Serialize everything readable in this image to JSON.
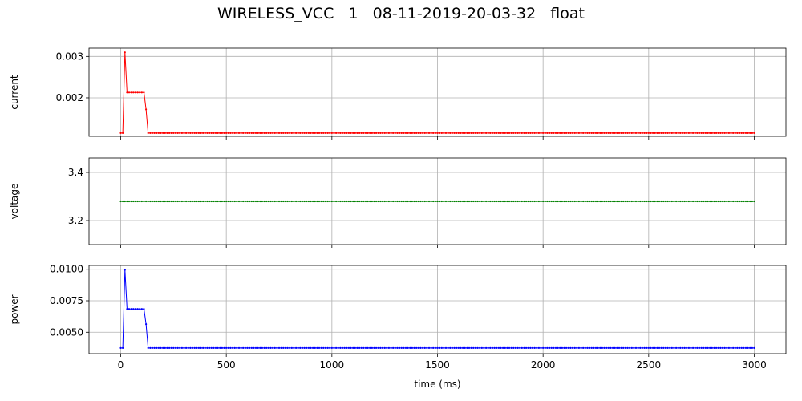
{
  "figure": {
    "title": "WIRELESS_VCC   1   08-11-2019-20-03-32   float"
  },
  "chart_data": [
    {
      "type": "line",
      "title": "",
      "xlabel": "",
      "ylabel": "current",
      "color": "#ff0000",
      "xlim": [
        -150,
        3150
      ],
      "ylim": [
        0.00107,
        0.0032
      ],
      "yticks": [
        0.002,
        0.003
      ],
      "ytick_labels": [
        "0.002",
        "0.003"
      ],
      "xticks": [
        0,
        500,
        1000,
        1500,
        2000,
        2500,
        3000
      ],
      "xtick_labels": [],
      "grid": true,
      "points": [
        [
          0,
          0.00115
        ],
        [
          10,
          0.00115
        ],
        [
          20,
          0.0031
        ],
        [
          30,
          0.00213
        ],
        [
          110,
          0.00213
        ],
        [
          120,
          0.00172
        ],
        [
          130,
          0.00115
        ],
        [
          3000,
          0.00115
        ]
      ]
    },
    {
      "type": "line",
      "title": "",
      "xlabel": "",
      "ylabel": "voltage",
      "color": "#008000",
      "xlim": [
        -150,
        3150
      ],
      "ylim": [
        3.1,
        3.46
      ],
      "yticks": [
        3.2,
        3.4
      ],
      "ytick_labels": [
        "3.2",
        "3.4"
      ],
      "xticks": [
        0,
        500,
        1000,
        1500,
        2000,
        2500,
        3000
      ],
      "xtick_labels": [],
      "grid": true,
      "points": [
        [
          0,
          3.28
        ],
        [
          3000,
          3.28
        ]
      ]
    },
    {
      "type": "line",
      "title": "",
      "xlabel": "time (ms)",
      "ylabel": "power",
      "color": "#0000ff",
      "xlim": [
        -150,
        3150
      ],
      "ylim": [
        0.0033,
        0.0103
      ],
      "yticks": [
        0.005,
        0.0075,
        0.01
      ],
      "ytick_labels": [
        "0.0050",
        "0.0075",
        "0.0100"
      ],
      "xticks": [
        0,
        500,
        1000,
        1500,
        2000,
        2500,
        3000
      ],
      "xtick_labels": [
        "0",
        "500",
        "1000",
        "1500",
        "2000",
        "2500",
        "3000"
      ],
      "grid": true,
      "points": [
        [
          0,
          0.00375
        ],
        [
          10,
          0.00375
        ],
        [
          20,
          0.00995
        ],
        [
          30,
          0.00685
        ],
        [
          110,
          0.00685
        ],
        [
          120,
          0.00565
        ],
        [
          130,
          0.00375
        ],
        [
          3000,
          0.00375
        ]
      ]
    }
  ]
}
